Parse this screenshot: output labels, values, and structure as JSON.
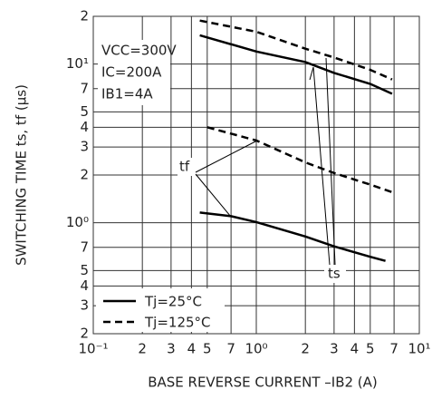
{
  "chart_data": {
    "type": "line",
    "xlog": true,
    "ylog": true,
    "grid": true,
    "ylabel": "SWITCHING TIME   ts, tf (µs)",
    "xlabel": "BASE REVERSE CURRENT   –IB2 (A)",
    "xlim": [
      0.1,
      10
    ],
    "ylim": [
      0.2,
      20
    ],
    "xticks": [
      {
        "value": 0.1,
        "label": "10⁻¹"
      },
      2.0,
      3.0,
      4.0,
      5.0,
      7.0,
      {
        "value": 0.2,
        "label": "2"
      },
      {
        "value": 0.3,
        "label": "3"
      },
      {
        "value": 0.4,
        "label": "4"
      },
      {
        "value": 0.5,
        "label": "5"
      },
      {
        "value": 0.7,
        "label": "7"
      },
      {
        "value": 1,
        "label": "10⁰"
      },
      {
        "value": 10,
        "label": "10¹"
      }
    ],
    "yticks": [
      {
        "value": 0.2,
        "label": "2"
      },
      {
        "value": 0.3,
        "label": "3"
      },
      {
        "value": 0.4,
        "label": "4"
      },
      {
        "value": 0.5,
        "label": "5"
      },
      {
        "value": 0.7,
        "label": "7"
      },
      {
        "value": 1,
        "label": "10⁰"
      },
      2,
      3,
      4,
      5,
      7,
      {
        "value": 10,
        "label": "10¹"
      },
      {
        "value": 20,
        "label": "2"
      }
    ],
    "annotations": [
      "VCC=300V",
      "IC=200A",
      "IB1=4A",
      "ts",
      "tf"
    ],
    "legend_position": "lower left",
    "series": [
      {
        "name": "Tj=25°C",
        "dash": "solid",
        "color": "#000000",
        "x": [
          0.45,
          1,
          2,
          3,
          5,
          6.8
        ],
        "values": [
          15.2,
          12.0,
          10.3,
          8.8,
          7.5,
          6.5
        ]
      },
      {
        "name": "Tj=125°C",
        "dash": "dashed",
        "color": "#000000",
        "x": [
          0.45,
          1,
          2,
          3,
          5,
          6.8
        ],
        "values": [
          18.8,
          16.0,
          12.5,
          11.0,
          9.2,
          8.0
        ]
      },
      {
        "dash": "dashed",
        "color": "#000000",
        "x": [
          0.5,
          1,
          2,
          3,
          5,
          6.8
        ],
        "values": [
          4.0,
          3.3,
          2.4,
          2.06,
          1.74,
          1.56
        ]
      },
      {
        "dash": "solid",
        "color": "#000000",
        "x": [
          0.45,
          0.7,
          1,
          2,
          3,
          5,
          6.2
        ],
        "values": [
          1.16,
          1.1,
          1.01,
          0.82,
          0.71,
          0.61,
          0.575
        ]
      }
    ]
  }
}
